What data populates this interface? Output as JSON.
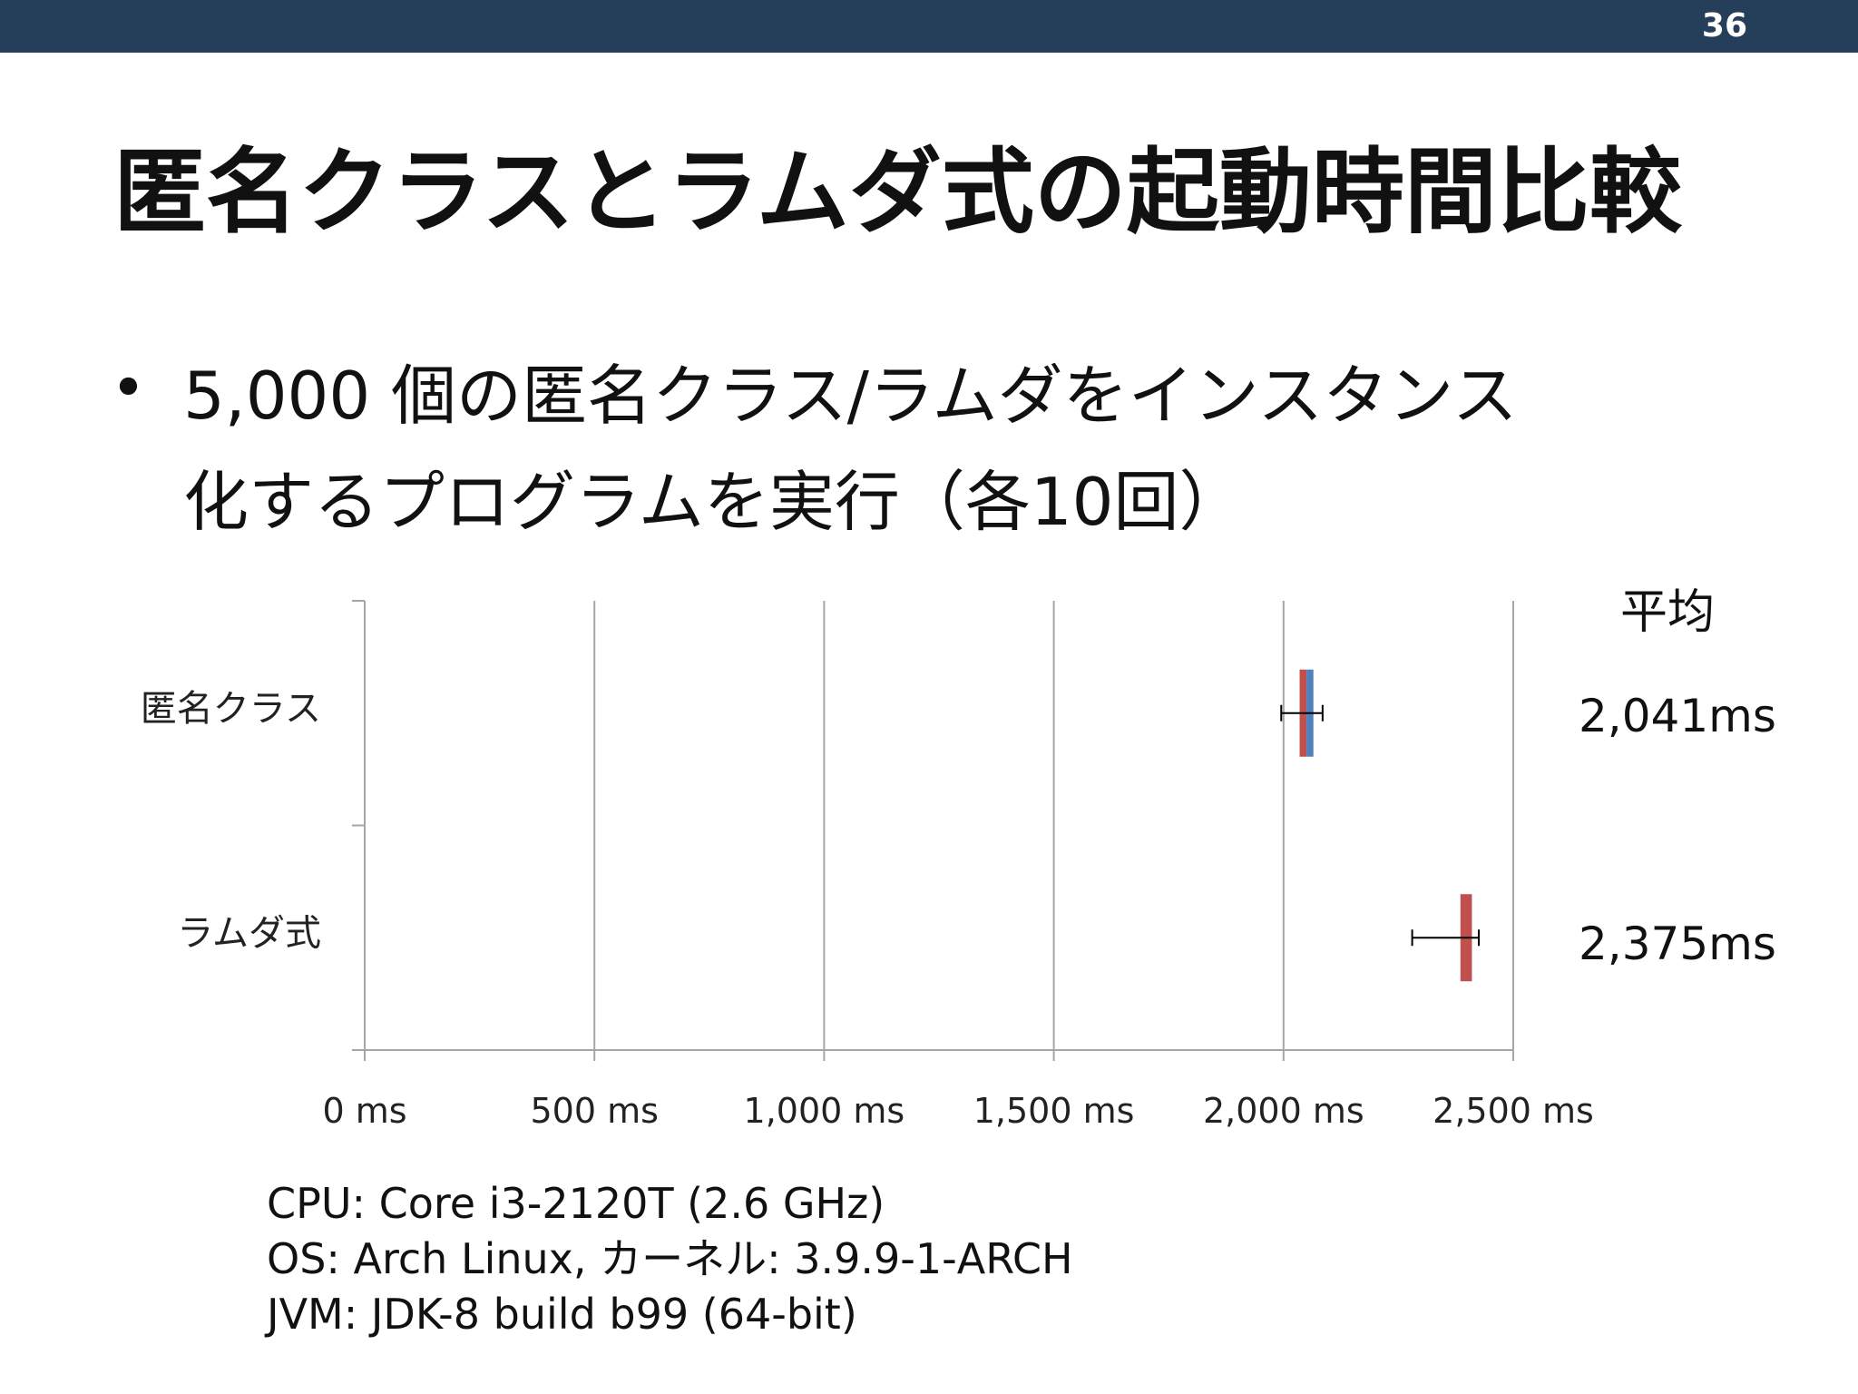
{
  "page_number": "36",
  "title": "匿名クラスとラムダ式の起動時間比較",
  "bullet": {
    "line1": "5,000 個の匿名クラス/ラムダをインスタンス",
    "line2": "化するプログラムを実行（各10回）"
  },
  "average": {
    "header": "平均",
    "values": [
      "2,041ms",
      "2,375ms"
    ]
  },
  "specs": [
    "CPU: Core i3-2120T (2.6 GHz)",
    "OS: Arch Linux, カーネル: 3.9.9-1-ARCH",
    "JVM: JDK-8 build b99 (64-bit)"
  ],
  "colors": {
    "header_bar": "#253f5a",
    "red_bar": "#c0504d",
    "blue_bar": "#4f81bd",
    "grid": "#a6a6a6"
  },
  "chart_data": {
    "type": "bar",
    "orientation": "horizontal",
    "categories": [
      "匿名クラス",
      "ラムダ式"
    ],
    "x_tick_labels": [
      "0 ms",
      "500 ms",
      "1,000 ms",
      "1,500 ms",
      "2,000 ms",
      "2,500 ms"
    ],
    "x_ticks": [
      0,
      500,
      1000,
      1500,
      2000,
      2500
    ],
    "xlim": [
      0,
      2500
    ],
    "grid": true,
    "series": [
      {
        "color": "#c0504d",
        "min": [
          2035,
          2385
        ],
        "max": [
          2050,
          2410
        ]
      },
      {
        "color": "#4f81bd",
        "min": [
          2050,
          null
        ],
        "max": [
          2065,
          null
        ]
      }
    ],
    "error_bars": [
      {
        "low": 1995,
        "high": 2085
      },
      {
        "low": 2280,
        "high": 2425
      }
    ]
  }
}
